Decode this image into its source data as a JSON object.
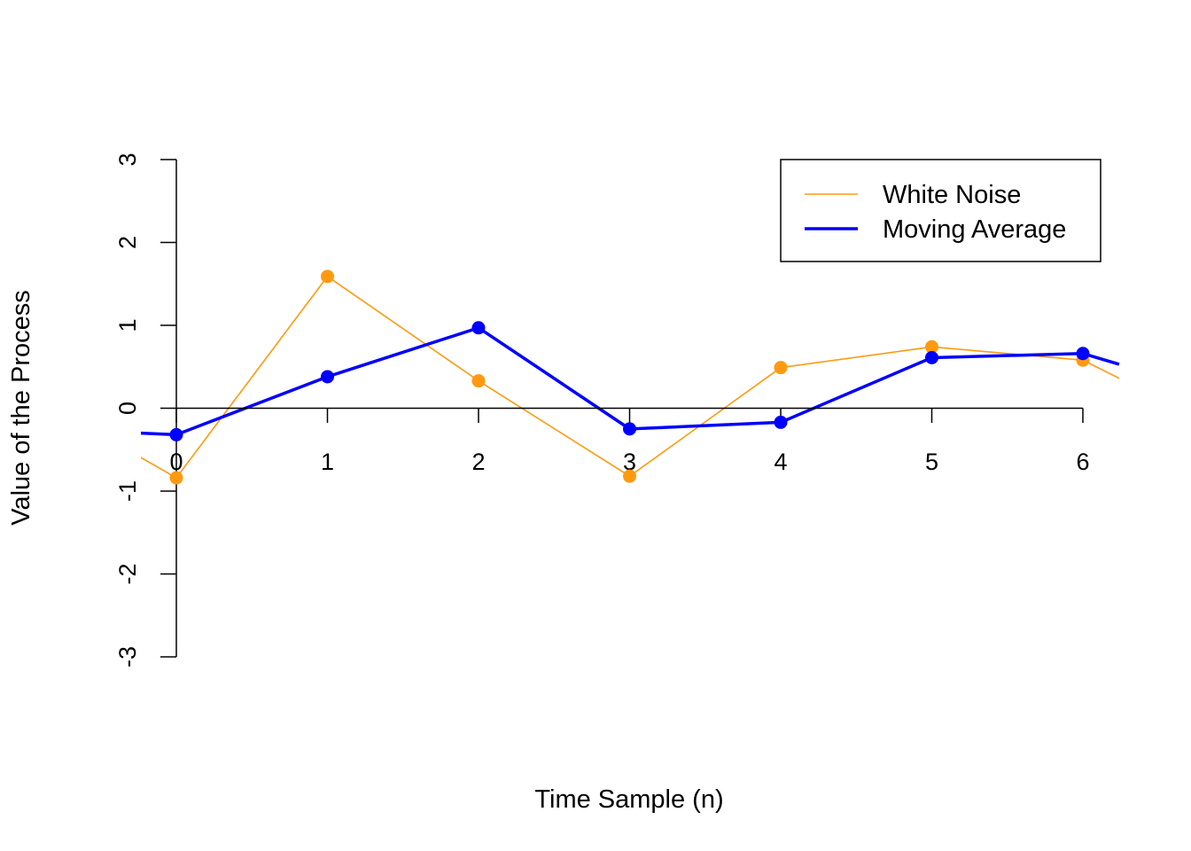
{
  "chart_data": {
    "type": "line",
    "title": "",
    "xlabel": "Time Sample (n)",
    "ylabel": "Value of the Process",
    "xlim": [
      -0.24,
      6.24
    ],
    "ylim": [
      -3,
      3
    ],
    "x_ticks": [
      "0",
      "1",
      "2",
      "3",
      "4",
      "5",
      "6"
    ],
    "y_ticks": [
      "-3",
      "-2",
      "-1",
      "0",
      "1",
      "2",
      "3"
    ],
    "grid": false,
    "legend": {
      "position": "top-right"
    },
    "series": [
      {
        "name": "White Noise",
        "color": "#FF9A10",
        "x": [
          0,
          1,
          2,
          3,
          4,
          5,
          6
        ],
        "values": [
          -0.84,
          1.59,
          0.33,
          -0.82,
          0.49,
          0.74,
          0.58
        ],
        "left_edge_value": -0.59,
        "right_edge_value": 0.36
      },
      {
        "name": "Moving Average",
        "color": "#0000FF",
        "x": [
          0,
          1,
          2,
          3,
          4,
          5,
          6
        ],
        "values": [
          -0.32,
          0.38,
          0.97,
          -0.25,
          -0.17,
          0.61,
          0.66
        ],
        "left_edge_value": -0.3,
        "right_edge_value": 0.53
      }
    ]
  }
}
